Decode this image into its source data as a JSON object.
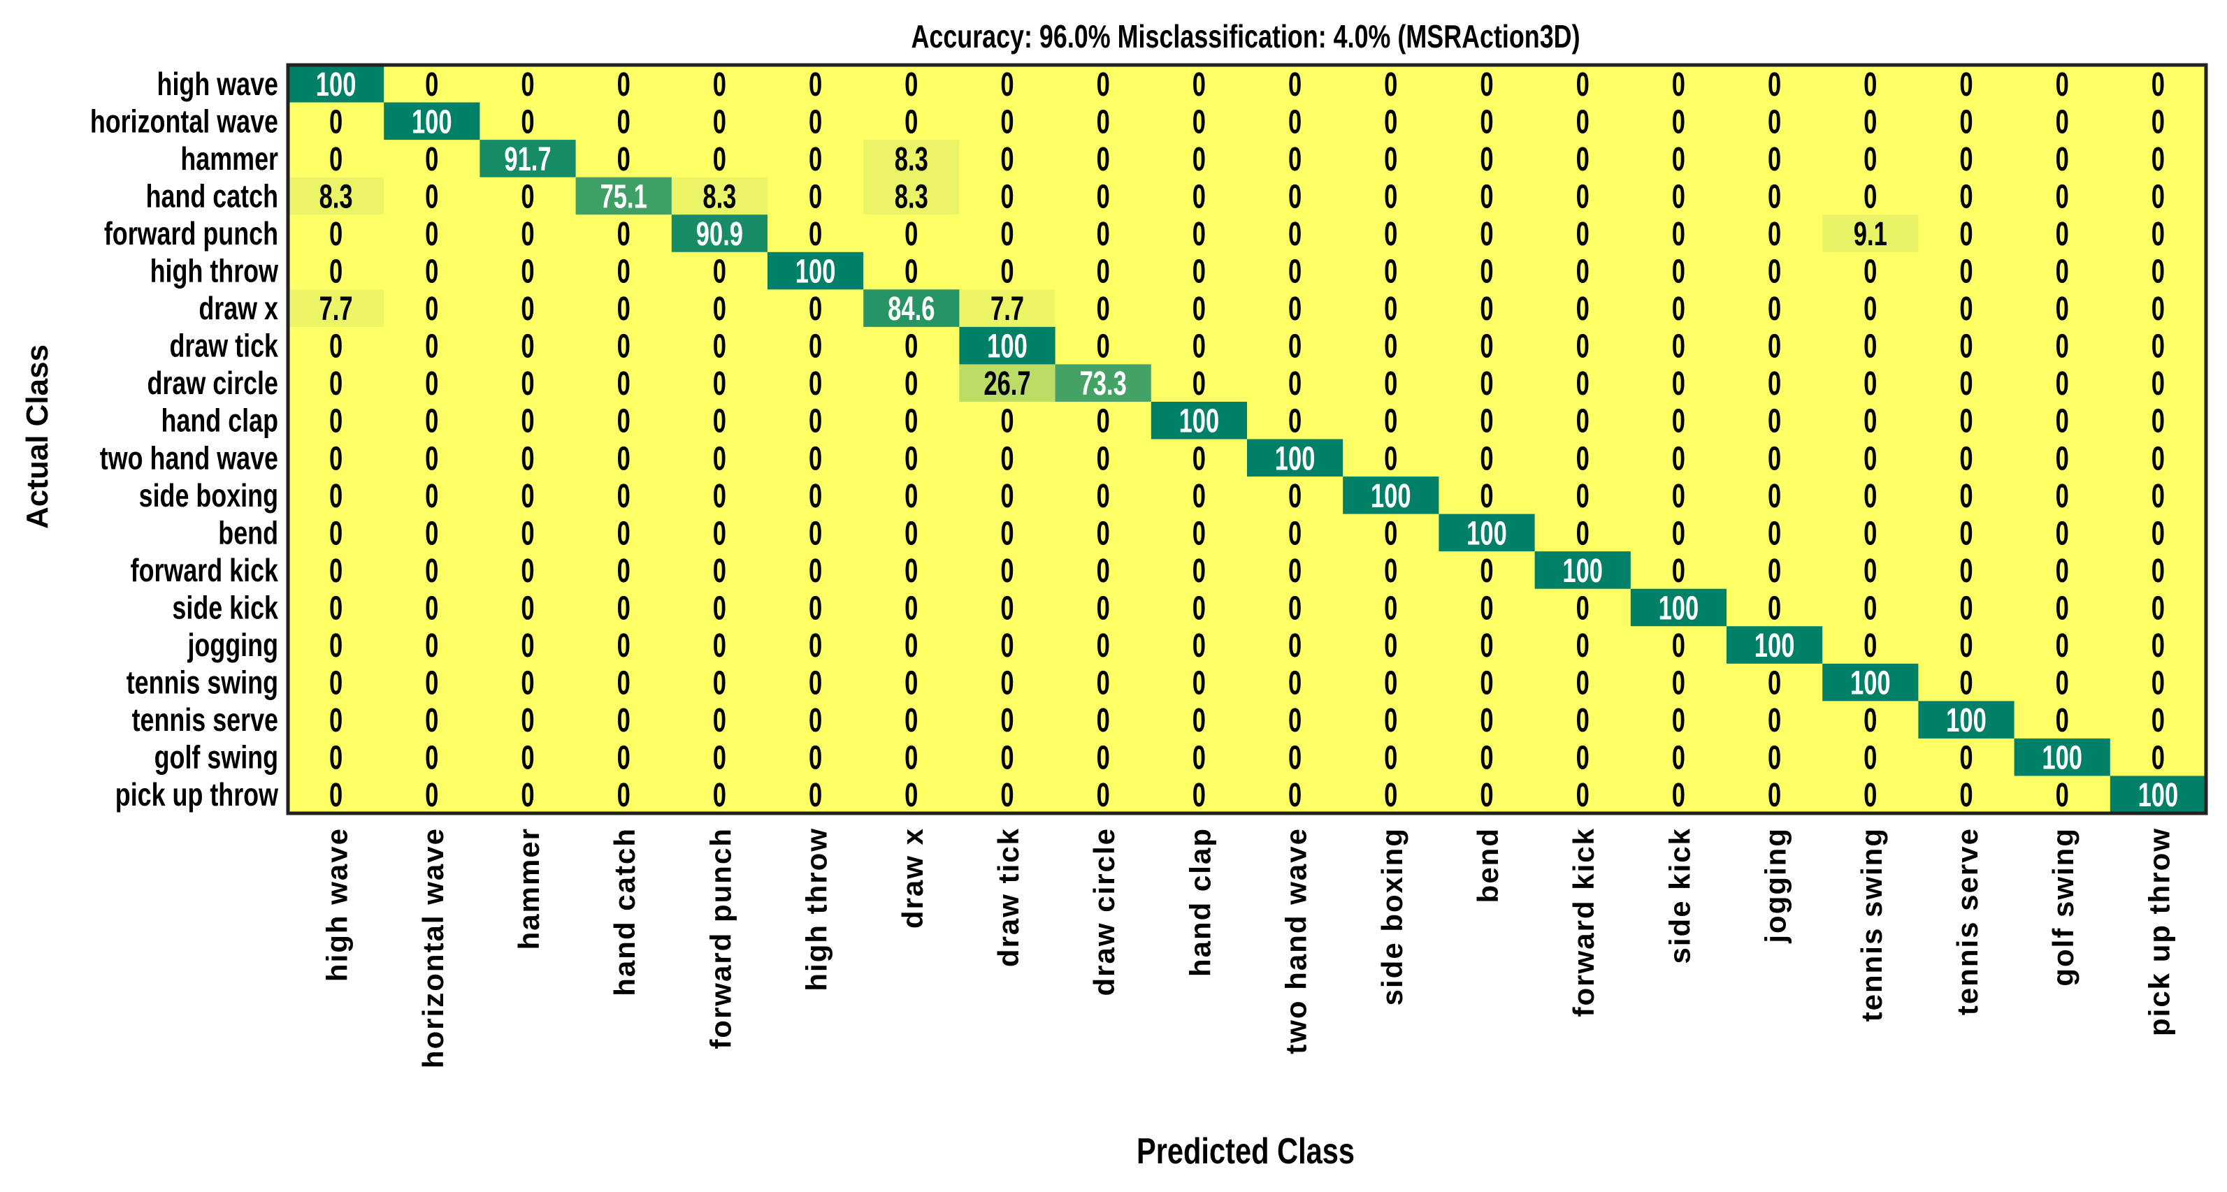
{
  "chart_data": {
    "type": "heatmap",
    "title": "Accuracy: 96.0%  Misclassification: 4.0% (MSRAction3D)",
    "xlabel": "Predicted Class",
    "ylabel": "Actual Class",
    "row_labels": [
      "high wave",
      "horizontal wave",
      "hammer",
      "hand catch",
      "forward punch",
      "high throw",
      "draw x",
      "draw tick",
      "draw circle",
      "hand clap",
      "two hand wave",
      "side boxing",
      "bend",
      "forward kick",
      "side kick",
      "jogging",
      "tennis swing",
      "tennis serve",
      "golf swing",
      "pick up throw"
    ],
    "col_labels": [
      "high wave",
      "horizontal wave",
      "hammer",
      "hand catch",
      "forward punch",
      "high throw",
      "draw x",
      "draw tick",
      "draw circle",
      "hand clap",
      "two hand wave",
      "side boxing",
      "bend",
      "forward kick",
      "side kick",
      "jogging",
      "tennis swing",
      "tennis serve",
      "golf swing",
      "pick up throw"
    ],
    "value_range": [
      0,
      100
    ],
    "colors": {
      "low": "#ffff66",
      "high": "#008066",
      "frame": "#222222",
      "text_dark": "#000000",
      "text_light": "#ffffff"
    },
    "cell_labels": [
      [
        "100",
        "0",
        "0",
        "0",
        "0",
        "0",
        "0",
        "0",
        "0",
        "0",
        "0",
        "0",
        "0",
        "0",
        "0",
        "0",
        "0",
        "0",
        "0",
        "0"
      ],
      [
        "0",
        "100",
        "0",
        "0",
        "0",
        "0",
        "0",
        "0",
        "0",
        "0",
        "0",
        "0",
        "0",
        "0",
        "0",
        "0",
        "0",
        "0",
        "0",
        "0"
      ],
      [
        "0",
        "0",
        "91.7",
        "0",
        "0",
        "0",
        "8.3",
        "0",
        "0",
        "0",
        "0",
        "0",
        "0",
        "0",
        "0",
        "0",
        "0",
        "0",
        "0",
        "0"
      ],
      [
        "8.3",
        "0",
        "0",
        "75.1",
        "8.3",
        "0",
        "8.3",
        "0",
        "0",
        "0",
        "0",
        "0",
        "0",
        "0",
        "0",
        "0",
        "0",
        "0",
        "0",
        "0"
      ],
      [
        "0",
        "0",
        "0",
        "0",
        "90.9",
        "0",
        "0",
        "0",
        "0",
        "0",
        "0",
        "0",
        "0",
        "0",
        "0",
        "0",
        "9.1",
        "0",
        "0",
        "0"
      ],
      [
        "0",
        "0",
        "0",
        "0",
        "0",
        "100",
        "0",
        "0",
        "0",
        "0",
        "0",
        "0",
        "0",
        "0",
        "0",
        "0",
        "0",
        "0",
        "0",
        "0"
      ],
      [
        "7.7",
        "0",
        "0",
        "0",
        "0",
        "0",
        "84.6",
        "7.7",
        "0",
        "0",
        "0",
        "0",
        "0",
        "0",
        "0",
        "0",
        "0",
        "0",
        "0",
        "0"
      ],
      [
        "0",
        "0",
        "0",
        "0",
        "0",
        "0",
        "0",
        "100",
        "0",
        "0",
        "0",
        "0",
        "0",
        "0",
        "0",
        "0",
        "0",
        "0",
        "0",
        "0"
      ],
      [
        "0",
        "0",
        "0",
        "0",
        "0",
        "0",
        "0",
        "26.7",
        "73.3",
        "0",
        "0",
        "0",
        "0",
        "0",
        "0",
        "0",
        "0",
        "0",
        "0",
        "0"
      ],
      [
        "0",
        "0",
        "0",
        "0",
        "0",
        "0",
        "0",
        "0",
        "0",
        "100",
        "0",
        "0",
        "0",
        "0",
        "0",
        "0",
        "0",
        "0",
        "0",
        "0"
      ],
      [
        "0",
        "0",
        "0",
        "0",
        "0",
        "0",
        "0",
        "0",
        "0",
        "0",
        "100",
        "0",
        "0",
        "0",
        "0",
        "0",
        "0",
        "0",
        "0",
        "0"
      ],
      [
        "0",
        "0",
        "0",
        "0",
        "0",
        "0",
        "0",
        "0",
        "0",
        "0",
        "0",
        "100",
        "0",
        "0",
        "0",
        "0",
        "0",
        "0",
        "0",
        "0"
      ],
      [
        "0",
        "0",
        "0",
        "0",
        "0",
        "0",
        "0",
        "0",
        "0",
        "0",
        "0",
        "0",
        "100",
        "0",
        "0",
        "0",
        "0",
        "0",
        "0",
        "0"
      ],
      [
        "0",
        "0",
        "0",
        "0",
        "0",
        "0",
        "0",
        "0",
        "0",
        "0",
        "0",
        "0",
        "0",
        "100",
        "0",
        "0",
        "0",
        "0",
        "0",
        "0"
      ],
      [
        "0",
        "0",
        "0",
        "0",
        "0",
        "0",
        "0",
        "0",
        "0",
        "0",
        "0",
        "0",
        "0",
        "0",
        "100",
        "0",
        "0",
        "0",
        "0",
        "0"
      ],
      [
        "0",
        "0",
        "0",
        "0",
        "0",
        "0",
        "0",
        "0",
        "0",
        "0",
        "0",
        "0",
        "0",
        "0",
        "0",
        "100",
        "0",
        "0",
        "0",
        "0"
      ],
      [
        "0",
        "0",
        "0",
        "0",
        "0",
        "0",
        "0",
        "0",
        "0",
        "0",
        "0",
        "0",
        "0",
        "0",
        "0",
        "0",
        "100",
        "0",
        "0",
        "0"
      ],
      [
        "0",
        "0",
        "0",
        "0",
        "0",
        "0",
        "0",
        "0",
        "0",
        "0",
        "0",
        "0",
        "0",
        "0",
        "0",
        "0",
        "0",
        "100",
        "0",
        "0"
      ],
      [
        "0",
        "0",
        "0",
        "0",
        "0",
        "0",
        "0",
        "0",
        "0",
        "0",
        "0",
        "0",
        "0",
        "0",
        "0",
        "0",
        "0",
        "0",
        "100",
        "0"
      ],
      [
        "0",
        "0",
        "0",
        "0",
        "0",
        "0",
        "0",
        "0",
        "0",
        "0",
        "0",
        "0",
        "0",
        "0",
        "0",
        "0",
        "0",
        "0",
        "0",
        "100"
      ]
    ]
  }
}
